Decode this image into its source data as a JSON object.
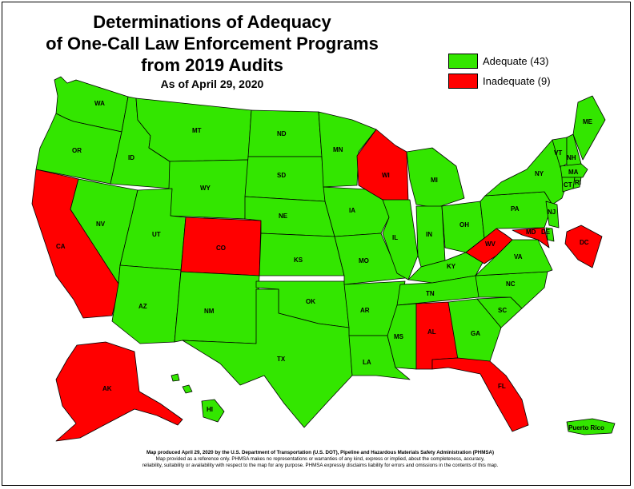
{
  "title": {
    "line1": "Determinations of Adequacy",
    "line2": "of One-Call Law Enforcement Programs",
    "line3": "from 2019 Audits",
    "subtitle": "As of April 29, 2020"
  },
  "colors": {
    "adequate": "#33e600",
    "inadequate": "#ff0000",
    "outline": "#000000"
  },
  "legend": {
    "adequate": "Adequate (43)",
    "inadequate": "Inadequate (9)"
  },
  "states": {
    "WA": {
      "label": "WA",
      "status": "adequate"
    },
    "OR": {
      "label": "OR",
      "status": "adequate"
    },
    "CA": {
      "label": "CA",
      "status": "inadequate"
    },
    "ID": {
      "label": "ID",
      "status": "adequate"
    },
    "NV": {
      "label": "NV",
      "status": "adequate"
    },
    "MT": {
      "label": "MT",
      "status": "adequate"
    },
    "WY": {
      "label": "WY",
      "status": "adequate"
    },
    "UT": {
      "label": "UT",
      "status": "adequate"
    },
    "AZ": {
      "label": "AZ",
      "status": "adequate"
    },
    "CO": {
      "label": "CO",
      "status": "inadequate"
    },
    "NM": {
      "label": "NM",
      "status": "adequate"
    },
    "ND": {
      "label": "ND",
      "status": "adequate"
    },
    "SD": {
      "label": "SD",
      "status": "adequate"
    },
    "NE": {
      "label": "NE",
      "status": "adequate"
    },
    "KS": {
      "label": "KS",
      "status": "adequate"
    },
    "OK": {
      "label": "OK",
      "status": "adequate"
    },
    "TX": {
      "label": "TX",
      "status": "adequate"
    },
    "MN": {
      "label": "MN",
      "status": "adequate"
    },
    "IA": {
      "label": "IA",
      "status": "adequate"
    },
    "MO": {
      "label": "MO",
      "status": "adequate"
    },
    "AR": {
      "label": "AR",
      "status": "adequate"
    },
    "LA": {
      "label": "LA",
      "status": "adequate"
    },
    "WI": {
      "label": "WI",
      "status": "inadequate"
    },
    "IL": {
      "label": "IL",
      "status": "adequate"
    },
    "MI": {
      "label": "MI",
      "status": "adequate"
    },
    "IN": {
      "label": "IN",
      "status": "adequate"
    },
    "OH": {
      "label": "OH",
      "status": "adequate"
    },
    "KY": {
      "label": "KY",
      "status": "adequate"
    },
    "TN": {
      "label": "TN",
      "status": "adequate"
    },
    "MS": {
      "label": "MS",
      "status": "adequate"
    },
    "AL": {
      "label": "AL",
      "status": "inadequate"
    },
    "GA": {
      "label": "GA",
      "status": "adequate"
    },
    "FL": {
      "label": "FL",
      "status": "inadequate"
    },
    "SC": {
      "label": "SC",
      "status": "adequate"
    },
    "NC": {
      "label": "NC",
      "status": "adequate"
    },
    "VA": {
      "label": "VA",
      "status": "adequate"
    },
    "WV": {
      "label": "WV",
      "status": "inadequate"
    },
    "PA": {
      "label": "PA",
      "status": "adequate"
    },
    "NY": {
      "label": "NY",
      "status": "adequate"
    },
    "VT": {
      "label": "VT",
      "status": "adequate"
    },
    "NH": {
      "label": "NH",
      "status": "adequate"
    },
    "ME": {
      "label": "ME",
      "status": "adequate"
    },
    "MA": {
      "label": "MA",
      "status": "adequate"
    },
    "CT": {
      "label": "CT",
      "status": "adequate"
    },
    "RI": {
      "label": "RI",
      "status": "adequate"
    },
    "NJ": {
      "label": "NJ",
      "status": "adequate"
    },
    "DE": {
      "label": "DE",
      "status": "adequate"
    },
    "MD": {
      "label": "MD",
      "status": "inadequate"
    },
    "DC": {
      "label": "DC",
      "status": "inadequate"
    },
    "AK": {
      "label": "AK",
      "status": "inadequate"
    },
    "HI": {
      "label": "HI",
      "status": "adequate"
    },
    "PR": {
      "label": "Puerto Rico",
      "status": "adequate"
    }
  },
  "footer": {
    "line1": "Map produced April 29, 2020 by the U.S. Department of Transportation (U.S. DOT), Pipeline and Hazardous Materials Safety Administration (PHMSA)",
    "line2": "Map provided as a reference only. PHMSA makes no representations or warranties of any kind, express or implied, about the completeness, accuracy,",
    "line3": "reliability, suitability or availability with respect to the map for any purpose. PHMSA expressly disclaims liability for errors and omissions in the contents of this map."
  }
}
